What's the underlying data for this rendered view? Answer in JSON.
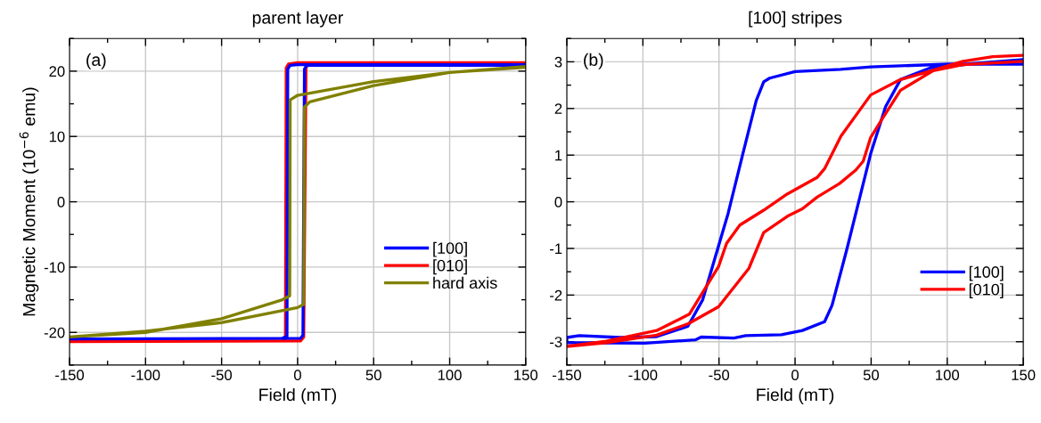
{
  "chart_data": [
    {
      "type": "line",
      "title": "parent layer",
      "xlabel": "Field (mT)",
      "ylabel": "Magnetic Moment (10$^{−6}$ emu)",
      "annotations": [
        "(a)"
      ],
      "xlim": [
        -150,
        150
      ],
      "xticks": [
        -150,
        {
          "value": -125,
          "label": null
        },
        -100,
        {
          "value": -75,
          "label": null
        },
        -50,
        {
          "value": -25,
          "label": null
        },
        0,
        {
          "value": 25,
          "label": null
        },
        50,
        {
          "value": 75,
          "label": null
        },
        100,
        {
          "value": 125,
          "label": null
        },
        150
      ],
      "ylim": [
        -25,
        25
      ],
      "yticks": [
        {
          "value": -25,
          "label": null
        },
        -20,
        {
          "value": -15,
          "label": null
        },
        -10,
        {
          "value": -5,
          "label": null
        },
        0,
        {
          "value": 5,
          "label": null
        },
        10,
        {
          "value": 15,
          "label": null
        },
        20,
        {
          "value": 25,
          "label": null
        }
      ],
      "grid": true,
      "legend": "lower right",
      "line_style": "solid",
      "marker": "none",
      "series": [
        {
          "name": "[010]",
          "color": "#ff0000",
          "x": [
            150,
            0,
            -6,
            -7.5,
            -8,
            -10,
            -150,
            -150,
            2,
            4,
            5.5,
            7,
            150
          ],
          "values": [
            21.3,
            21.3,
            21.1,
            20.5,
            -20.9,
            -21.3,
            -21.4,
            -21.4,
            -21.3,
            -20.7,
            20.5,
            21.1,
            21.2
          ]
        },
        {
          "name": "[100]",
          "color": "#0000ff",
          "x": [
            150,
            0,
            -5,
            -6.5,
            -7,
            -10,
            -150,
            -150,
            2,
            3.5,
            4.5,
            6,
            150
          ],
          "values": [
            21,
            21,
            20.9,
            20.3,
            -20.6,
            -20.9,
            -21,
            -21,
            -20.9,
            -20.4,
            20.3,
            20.9,
            20.9
          ]
        },
        {
          "name": "hard axis",
          "color": "#808000",
          "x": [
            150,
            100,
            50,
            0,
            -4.9,
            -5.2,
            -10,
            -50,
            -100,
            -150,
            -150,
            -100,
            -50,
            0,
            4,
            4.5,
            8,
            50,
            100,
            150
          ],
          "values": [
            20.7,
            19.8,
            18.4,
            16.3,
            15.6,
            -14.4,
            -15,
            -17.9,
            -20,
            -20.7,
            -20.7,
            -19.8,
            -18.5,
            -16.2,
            -15.7,
            14.5,
            15.3,
            17.8,
            19.8,
            20.6
          ]
        }
      ]
    },
    {
      "type": "line",
      "title": "[100] stripes",
      "xlabel": "Field (mT)",
      "annotations": [
        "(b)"
      ],
      "xlim": [
        -150,
        150
      ],
      "xticks": [
        -150,
        {
          "value": -125,
          "label": null
        },
        -100,
        {
          "value": -75,
          "label": null
        },
        -50,
        {
          "value": -25,
          "label": null
        },
        0,
        {
          "value": 25,
          "label": null
        },
        50,
        {
          "value": 75,
          "label": null
        },
        100,
        {
          "value": 125,
          "label": null
        },
        150
      ],
      "ylim": [
        -3.5,
        3.5
      ],
      "yticks": [
        {
          "value": -3.5,
          "label": null
        },
        -3,
        {
          "value": -2.5,
          "label": null
        },
        -2,
        {
          "value": -1.5,
          "label": null
        },
        -1,
        {
          "value": -0.5,
          "label": null
        },
        0,
        {
          "value": 0.5,
          "label": null
        },
        1,
        {
          "value": 1.5,
          "label": null
        },
        2,
        {
          "value": 2.5,
          "label": null
        },
        3,
        {
          "value": 3.5,
          "label": null
        }
      ],
      "grid": true,
      "legend": "lower right",
      "line_style": "solid",
      "marker": "none",
      "series": [
        {
          "name": "[100]",
          "color": "#0000ff",
          "x": [
            150,
            100.5,
            49.7,
            30,
            0,
            -16.7,
            -20.6,
            -25.5,
            -34.3,
            -44,
            -50.3,
            -60.7,
            -70.5,
            -91,
            -114.4,
            -141.8,
            -150,
            -150,
            -98.8,
            -65.6,
            -61.7,
            -40.2,
            -32.4,
            -9,
            4.8,
            19.4,
            24.3,
            34.1,
            49.7,
            59.5,
            69.3,
            88.8,
            120,
            150
          ],
          "values": [
            2.95,
            2.95,
            2.89,
            2.84,
            2.79,
            2.65,
            2.57,
            2.17,
            1.03,
            -0.25,
            -0.95,
            -2.1,
            -2.67,
            -2.89,
            -2.91,
            -2.87,
            -2.91,
            -3.02,
            -3.03,
            -2.96,
            -2.9,
            -2.92,
            -2.87,
            -2.85,
            -2.76,
            -2.57,
            -2.22,
            -1.01,
            1.03,
            2.04,
            2.62,
            2.87,
            2.97,
            3.05
          ]
        },
        {
          "name": "[010]",
          "color": "#ff0000",
          "x": [
            150,
            129.9,
            110.3,
            90.8,
            69.3,
            49.7,
            30.2,
            19.4,
            14.5,
            -5,
            -20.6,
            -36.3,
            -45,
            -50.3,
            -69.5,
            -91,
            -124.2,
            -150,
            -124.2,
            -91,
            -69.9,
            -50.3,
            -30.4,
            -20.6,
            -5,
            4.8,
            14.5,
            29.2,
            39.9,
            44.8,
            49.7,
            57.5,
            69.3,
            90.8,
            110.3,
            150
          ],
          "values": [
            3.14,
            3.11,
            3.01,
            2.82,
            2.62,
            2.29,
            1.41,
            0.71,
            0.52,
            0.17,
            -0.18,
            -0.5,
            -0.89,
            -1.39,
            -2.41,
            -2.76,
            -2.99,
            -3.1,
            -3.02,
            -2.86,
            -2.61,
            -2.25,
            -1.43,
            -0.66,
            -0.31,
            -0.15,
            0.1,
            0.39,
            0.68,
            0.87,
            1.38,
            1.79,
            2.39,
            2.81,
            2.94,
            3.01
          ]
        }
      ]
    }
  ]
}
